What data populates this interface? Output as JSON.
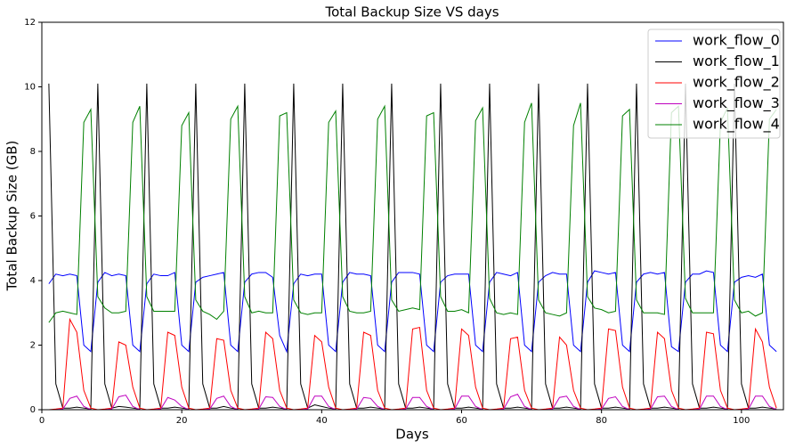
{
  "chart_data": {
    "type": "line",
    "title": "Total Backup Size   VS   days",
    "x_label": "Days",
    "y_label": "Total Backup Size (GB)",
    "xlim": [
      0,
      106
    ],
    "xticks": [
      0,
      20,
      40,
      60,
      80,
      100
    ],
    "ylim": [
      0,
      12
    ],
    "yticks": [
      0,
      2,
      4,
      6,
      8,
      10,
      12
    ],
    "grid": false,
    "legend": "upper right",
    "x": [
      1,
      2,
      3,
      4,
      5,
      6,
      7,
      8,
      9,
      10,
      11,
      12,
      13,
      14,
      15,
      16,
      17,
      18,
      19,
      20,
      21,
      22,
      23,
      24,
      25,
      26,
      27,
      28,
      29,
      30,
      31,
      32,
      33,
      34,
      35,
      36,
      37,
      38,
      39,
      40,
      41,
      42,
      43,
      44,
      45,
      46,
      47,
      48,
      49,
      50,
      51,
      52,
      53,
      54,
      55,
      56,
      57,
      58,
      59,
      60,
      61,
      62,
      63,
      64,
      65,
      66,
      67,
      68,
      69,
      70,
      71,
      72,
      73,
      74,
      75,
      76,
      77,
      78,
      79,
      80,
      81,
      82,
      83,
      84,
      85,
      86,
      87,
      88,
      89,
      90,
      91,
      92,
      93,
      94,
      95,
      96,
      97,
      98,
      99,
      100,
      101,
      102,
      103,
      104,
      105
    ],
    "series": [
      {
        "name": "work_flow_0",
        "color": "#0000ff",
        "values": [
          3.9,
          4.2,
          4.15,
          4.2,
          4.15,
          2.0,
          1.8,
          3.95,
          4.25,
          4.15,
          4.2,
          4.15,
          2.0,
          1.8,
          3.9,
          4.2,
          4.15,
          4.15,
          4.25,
          2.0,
          1.8,
          3.95,
          4.1,
          4.15,
          4.2,
          4.25,
          2.0,
          1.8,
          3.95,
          4.2,
          4.25,
          4.25,
          4.1,
          2.3,
          1.8,
          3.9,
          4.2,
          4.15,
          4.2,
          4.2,
          2.0,
          1.8,
          3.95,
          4.25,
          4.2,
          4.2,
          4.15,
          2.0,
          1.8,
          3.95,
          4.25,
          4.25,
          4.25,
          4.2,
          2.0,
          1.8,
          3.95,
          4.15,
          4.2,
          4.2,
          4.2,
          2.0,
          1.8,
          3.95,
          4.25,
          4.2,
          4.15,
          4.25,
          2.0,
          1.8,
          3.95,
          4.15,
          4.25,
          4.2,
          4.2,
          2.0,
          1.8,
          3.95,
          4.3,
          4.25,
          4.2,
          4.25,
          2.0,
          1.8,
          3.95,
          4.2,
          4.25,
          4.2,
          4.25,
          1.95,
          1.8,
          3.95,
          4.2,
          4.2,
          4.3,
          4.25,
          2.0,
          1.8,
          3.95,
          4.1,
          4.15,
          4.1,
          4.2,
          2.0,
          1.8
        ]
      },
      {
        "name": "work_flow_1",
        "color": "#000000",
        "values": [
          10.1,
          0.8,
          0.05,
          0.05,
          0.08,
          0.05,
          0.02,
          10.1,
          0.8,
          0.05,
          0.1,
          0.08,
          0.05,
          0.02,
          10.1,
          0.8,
          0.05,
          0.05,
          0.08,
          0.05,
          0.02,
          10.1,
          0.8,
          0.05,
          0.05,
          0.1,
          0.05,
          0.02,
          10.1,
          0.8,
          0.05,
          0.05,
          0.08,
          0.05,
          0.02,
          10.1,
          0.8,
          0.05,
          0.15,
          0.1,
          0.05,
          0.02,
          10.1,
          0.8,
          0.05,
          0.05,
          0.08,
          0.05,
          0.02,
          10.1,
          0.8,
          0.05,
          0.05,
          0.08,
          0.05,
          0.02,
          10.1,
          0.8,
          0.05,
          0.05,
          0.08,
          0.05,
          0.02,
          10.1,
          0.8,
          0.05,
          0.05,
          0.08,
          0.05,
          0.02,
          10.1,
          0.8,
          0.05,
          0.05,
          0.08,
          0.05,
          0.02,
          10.1,
          0.8,
          0.05,
          0.05,
          0.08,
          0.05,
          0.02,
          10.1,
          0.8,
          0.05,
          0.05,
          0.08,
          0.05,
          0.02,
          10.1,
          0.8,
          0.05,
          0.05,
          0.08,
          0.05,
          0.02,
          10.1,
          0.8,
          0.05,
          0.05,
          0.08,
          0.05,
          0.02
        ]
      },
      {
        "name": "work_flow_2",
        "color": "#ff0000",
        "values": [
          0.0,
          0.02,
          0.05,
          2.8,
          2.4,
          0.6,
          0.05,
          0.0,
          0.02,
          0.05,
          2.1,
          2.0,
          0.7,
          0.05,
          0.0,
          0.02,
          0.05,
          2.4,
          2.3,
          0.7,
          0.05,
          0.0,
          0.02,
          0.05,
          2.2,
          2.15,
          0.6,
          0.05,
          0.0,
          0.02,
          0.05,
          2.4,
          2.2,
          0.6,
          0.05,
          0.0,
          0.02,
          0.05,
          2.3,
          2.1,
          0.7,
          0.05,
          0.0,
          0.02,
          0.05,
          2.4,
          2.3,
          0.6,
          0.05,
          0.0,
          0.02,
          0.05,
          2.5,
          2.55,
          0.6,
          0.05,
          0.0,
          0.02,
          0.05,
          2.5,
          2.3,
          0.7,
          0.05,
          0.0,
          0.02,
          0.05,
          2.2,
          2.25,
          0.6,
          0.05,
          0.0,
          0.02,
          0.05,
          2.25,
          2.0,
          0.6,
          0.05,
          0.0,
          0.02,
          0.05,
          2.5,
          2.45,
          0.7,
          0.05,
          0.0,
          0.02,
          0.05,
          2.4,
          2.2,
          0.6,
          0.05,
          0.0,
          0.02,
          0.05,
          2.4,
          2.35,
          0.6,
          0.05,
          0.0,
          0.02,
          0.05,
          2.5,
          2.1,
          0.7,
          0.05
        ]
      },
      {
        "name": "work_flow_3",
        "color": "#bf00bf",
        "values": [
          0.0,
          0.0,
          0.02,
          0.35,
          0.42,
          0.1,
          0.0,
          0.0,
          0.0,
          0.02,
          0.4,
          0.45,
          0.1,
          0.0,
          0.0,
          0.0,
          0.02,
          0.38,
          0.3,
          0.1,
          0.0,
          0.0,
          0.0,
          0.02,
          0.35,
          0.42,
          0.1,
          0.0,
          0.0,
          0.0,
          0.02,
          0.4,
          0.38,
          0.1,
          0.0,
          0.0,
          0.0,
          0.02,
          0.42,
          0.42,
          0.1,
          0.0,
          0.0,
          0.0,
          0.02,
          0.38,
          0.35,
          0.1,
          0.0,
          0.0,
          0.0,
          0.02,
          0.38,
          0.38,
          0.1,
          0.0,
          0.0,
          0.0,
          0.02,
          0.42,
          0.42,
          0.1,
          0.0,
          0.0,
          0.0,
          0.02,
          0.4,
          0.48,
          0.1,
          0.0,
          0.0,
          0.0,
          0.02,
          0.38,
          0.42,
          0.1,
          0.0,
          0.0,
          0.0,
          0.02,
          0.35,
          0.4,
          0.1,
          0.0,
          0.0,
          0.0,
          0.02,
          0.4,
          0.42,
          0.1,
          0.0,
          0.0,
          0.0,
          0.02,
          0.42,
          0.42,
          0.1,
          0.0,
          0.0,
          0.0,
          0.02,
          0.42,
          0.42,
          0.1,
          0.0
        ]
      },
      {
        "name": "work_flow_4",
        "color": "#008000",
        "values": [
          2.7,
          3.0,
          3.05,
          3.0,
          2.95,
          8.9,
          9.3,
          3.5,
          3.15,
          3.0,
          3.0,
          3.05,
          8.9,
          9.4,
          3.5,
          3.05,
          3.05,
          3.05,
          3.05,
          8.8,
          9.2,
          3.4,
          3.05,
          2.95,
          2.8,
          3.05,
          9.0,
          9.4,
          3.5,
          3.0,
          3.05,
          3.0,
          3.0,
          9.1,
          9.2,
          3.4,
          3.0,
          2.95,
          3.0,
          3.0,
          8.9,
          9.25,
          3.5,
          3.05,
          3.0,
          3.0,
          3.05,
          9.0,
          9.4,
          3.4,
          3.05,
          3.1,
          3.15,
          3.1,
          9.1,
          9.2,
          3.5,
          3.05,
          3.05,
          3.1,
          3.0,
          8.95,
          9.35,
          3.45,
          3.0,
          2.95,
          3.0,
          2.95,
          8.9,
          9.5,
          3.4,
          3.0,
          2.95,
          2.9,
          3.0,
          8.8,
          9.5,
          3.5,
          3.15,
          3.1,
          3.0,
          3.05,
          9.1,
          9.3,
          3.4,
          3.0,
          3.0,
          3.0,
          2.95,
          9.2,
          9.4,
          3.45,
          3.0,
          3.0,
          3.0,
          3.0,
          8.9,
          9.35,
          3.4,
          3.0,
          3.05,
          2.9,
          3.0,
          9.0,
          9.3
        ]
      }
    ]
  }
}
